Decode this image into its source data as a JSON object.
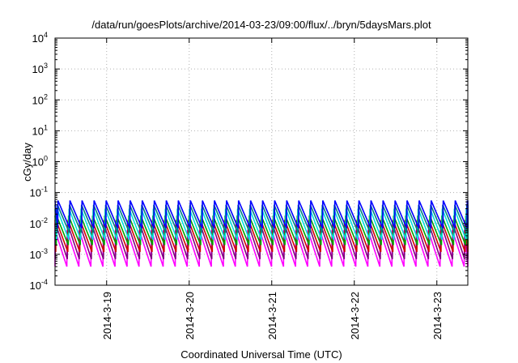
{
  "chart_data": {
    "type": "line",
    "title": "/data/run/goesPlots/archive/2014-03-23/09:00/flux/../bryn/5daysMars.plot",
    "xlabel": "Coordinated Universal Time (UTC)",
    "ylabel": "cGy/day",
    "yscale": "log",
    "ylim": [
      0.0001,
      10000
    ],
    "y_ticks": [
      {
        "base": "10",
        "exp": "-4",
        "value": 0.0001
      },
      {
        "base": "10",
        "exp": "-3",
        "value": 0.001
      },
      {
        "base": "10",
        "exp": "-2",
        "value": 0.01
      },
      {
        "base": "10",
        "exp": "-1",
        "value": 0.1
      },
      {
        "base": "10",
        "exp": "0",
        "value": 1
      },
      {
        "base": "10",
        "exp": "1",
        "value": 10
      },
      {
        "base": "10",
        "exp": "2",
        "value": 100
      },
      {
        "base": "10",
        "exp": "3",
        "value": 1000
      },
      {
        "base": "10",
        "exp": "4",
        "value": 10000
      }
    ],
    "xlim": [
      "2014-03-18 09:00",
      "2014-03-23 09:00"
    ],
    "x_ticks": [
      {
        "label": "2014-3-19",
        "value": "2014-03-19 00:00"
      },
      {
        "label": "2014-3-20",
        "value": "2014-03-20 00:00"
      },
      {
        "label": "2014-3-21",
        "value": "2014-03-21 00:00"
      },
      {
        "label": "2014-3-22",
        "value": "2014-03-22 00:00"
      },
      {
        "label": "2014-3-23",
        "value": "2014-03-23 00:00"
      }
    ],
    "grid": true,
    "oscillation_period_hours": 3.5,
    "series": [
      {
        "color": "#ff00ff",
        "peak": 0.006,
        "trough": 0.0004
      },
      {
        "color": "#800080",
        "peak": 0.01,
        "trough": 0.0007
      },
      {
        "color": "#d00000",
        "peak": 0.013,
        "trough": 0.0012
      },
      {
        "color": "#00a000",
        "peak": 0.018,
        "trough": 0.002
      },
      {
        "color": "#00e0e0",
        "peak": 0.03,
        "trough": 0.003
      },
      {
        "color": "#008080",
        "peak": 0.04,
        "trough": 0.005
      },
      {
        "color": "#0000ff",
        "peak": 0.055,
        "trough": 0.007
      }
    ]
  }
}
